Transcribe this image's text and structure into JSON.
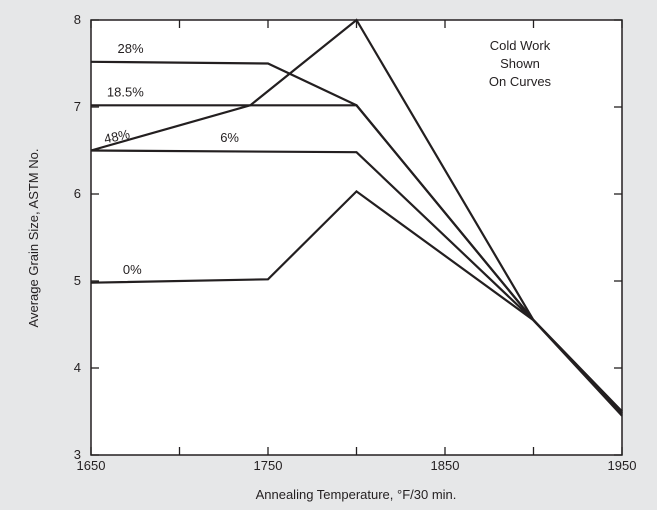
{
  "chart_data": {
    "type": "line",
    "xlabel": "Annealing Temperature, °F/30 min.",
    "ylabel": "Average Grain Size, ASTM No.",
    "xlim": [
      1650,
      1950
    ],
    "ylim": [
      3,
      8
    ],
    "xticks": [
      1650,
      1750,
      1850,
      1950
    ],
    "yticks": [
      3,
      4,
      5,
      6,
      7,
      8
    ],
    "grid": false,
    "annotation": [
      "Cold Work",
      "Shown",
      "On Curves"
    ],
    "series": [
      {
        "name": "28%",
        "x": [
          1650,
          1750,
          1800,
          1900,
          1950
        ],
        "y": [
          7.52,
          7.5,
          7.02,
          4.55,
          3.5
        ]
      },
      {
        "name": "18.5%",
        "x": [
          1650,
          1800,
          1900,
          1950
        ],
        "y": [
          7.02,
          7.02,
          4.55,
          3.48
        ]
      },
      {
        "name": "48%",
        "x": [
          1650,
          1740,
          1800,
          1900,
          1950
        ],
        "y": [
          6.5,
          7.02,
          8.0,
          4.55,
          3.5
        ]
      },
      {
        "name": "6%",
        "x": [
          1650,
          1800,
          1900,
          1950
        ],
        "y": [
          6.5,
          6.48,
          4.55,
          3.48
        ]
      },
      {
        "name": "0%",
        "x": [
          1650,
          1750,
          1800,
          1900,
          1950
        ],
        "y": [
          4.98,
          5.02,
          6.03,
          4.55,
          3.45
        ]
      }
    ]
  }
}
